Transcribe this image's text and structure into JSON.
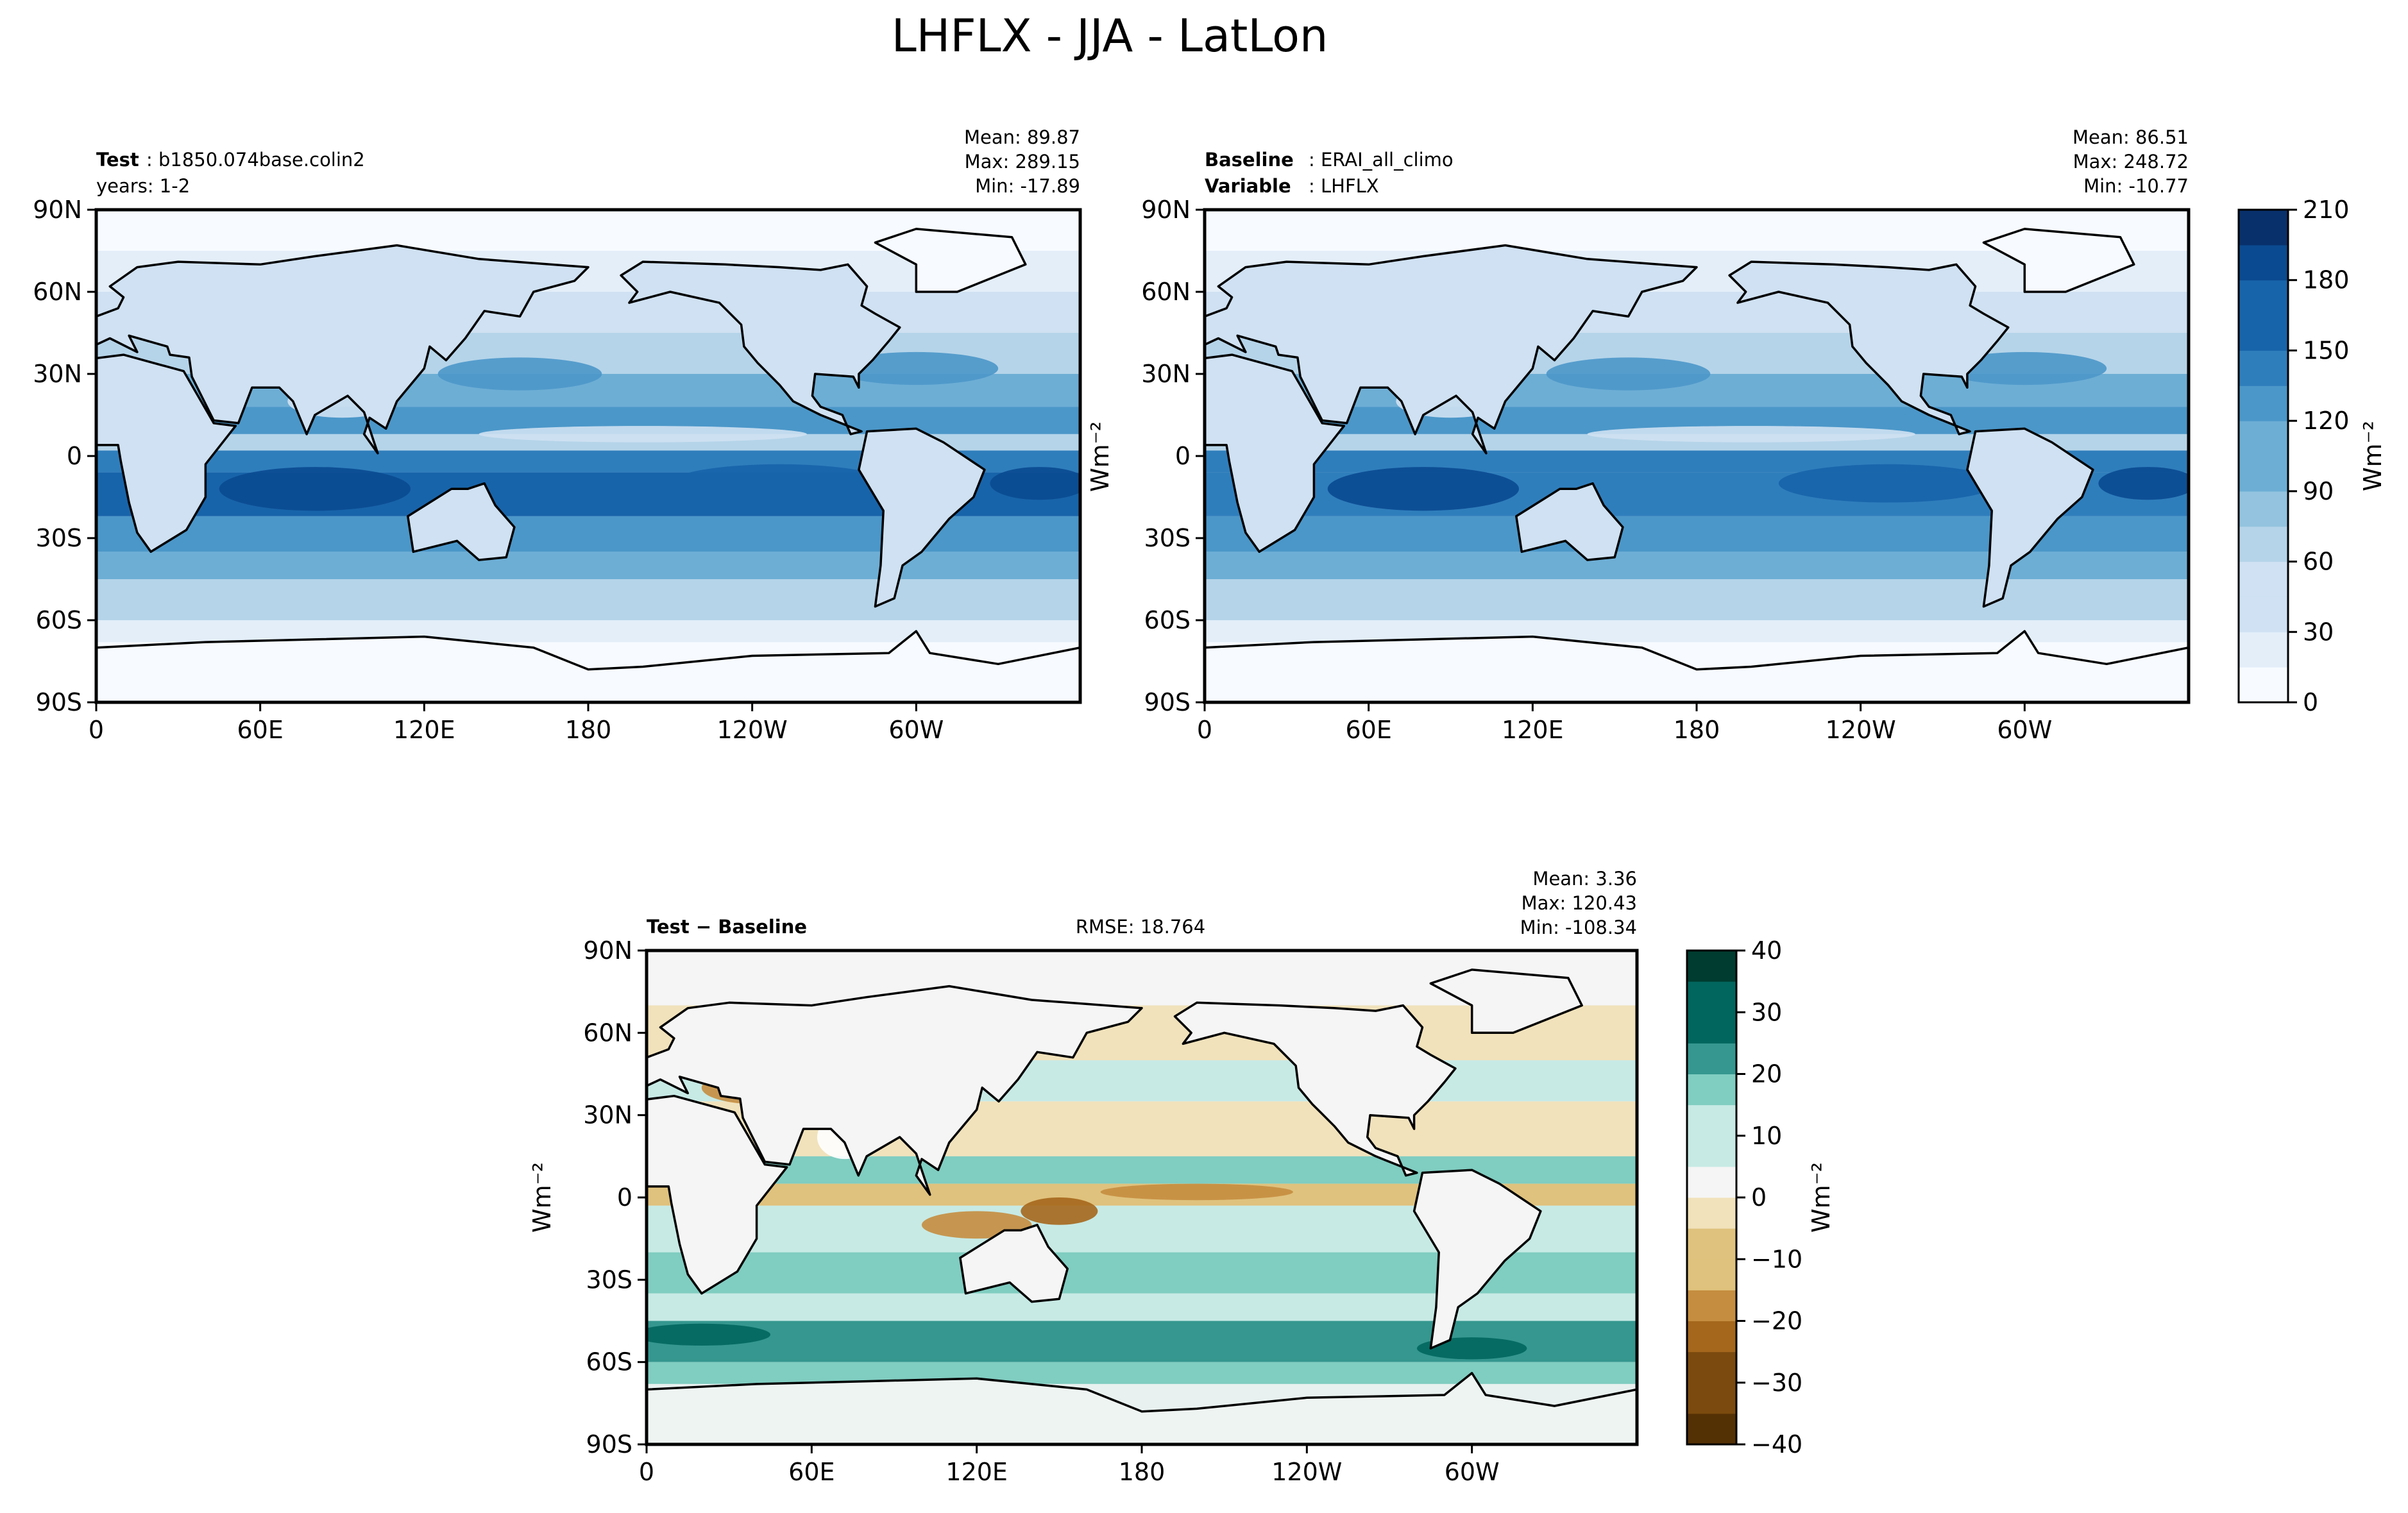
{
  "page_title": "LHFLX - JJA - LatLon",
  "colors": {
    "blues": [
      "#f7fbff",
      "#e3eef9",
      "#cfe1f2",
      "#b5d4e9",
      "#93c3df",
      "#6daed5",
      "#4b97c9",
      "#2f7ebc",
      "#1864aa",
      "#0a4a90",
      "#08306b"
    ],
    "diverging": [
      "#543005",
      "#7a4a0e",
      "#a5671c",
      "#c58d3f",
      "#dfc27d",
      "#f1e2bb",
      "#f5f5f5",
      "#c7eae5",
      "#80cdc1",
      "#35978f",
      "#01665e",
      "#003c30"
    ],
    "coast": "#000000",
    "axes": "#000000"
  },
  "panels": {
    "test": {
      "title_bold": "Test",
      "title_rest": ": b1850.074base.colin2",
      "subtitle": "years: 1-2",
      "stats": {
        "mean": "Mean: 89.87",
        "max": "Max: 289.15",
        "min": "Min: -17.89"
      },
      "ylabel": ""
    },
    "baseline": {
      "title_bold": "Baseline",
      "title_rest": ": ERAI_all_climo",
      "subtitle_bold": "Variable",
      "subtitle_rest": ": LHFLX",
      "stats": {
        "mean": "Mean: 86.51",
        "max": "Max: 248.72",
        "min": "Min: -10.77"
      },
      "ylabel": "Wm⁻²"
    },
    "diff": {
      "title_bold": "Test − Baseline",
      "rmse": "RMSE: 18.764",
      "stats": {
        "mean": "Mean:  3.36",
        "max": "Max: 120.43",
        "min": "Min: -108.34"
      },
      "ylabel": "Wm⁻²"
    }
  },
  "colorbars": {
    "top": {
      "label": "Wm⁻²",
      "ticks": [
        "210",
        "180",
        "150",
        "120",
        "90",
        "60",
        "30",
        "0"
      ]
    },
    "bottom": {
      "label": "Wm⁻²",
      "ticks": [
        "40",
        "30",
        "20",
        "10",
        "0",
        "−10",
        "−20",
        "−30",
        "−40"
      ]
    }
  },
  "chart_data": [
    {
      "type": "heatmap",
      "title": "Test: b1850.074base.colin2",
      "variable": "LHFLX",
      "season": "JJA",
      "units": "Wm⁻²",
      "x_ticks": [
        "0",
        "60E",
        "120E",
        "180",
        "120W",
        "60W"
      ],
      "y_ticks": [
        "90N",
        "60N",
        "30N",
        "0",
        "30S",
        "60S",
        "90S"
      ],
      "xlim": [
        0,
        360
      ],
      "ylim": [
        -90,
        90
      ],
      "colorbar": {
        "min": 0,
        "max": 210,
        "step": 15
      },
      "stats": {
        "mean": 89.87,
        "max": 289.15,
        "min": -17.89
      }
    },
    {
      "type": "heatmap",
      "title": "Baseline: ERAI_all_climo",
      "variable": "LHFLX",
      "season": "JJA",
      "units": "Wm⁻²",
      "x_ticks": [
        "0",
        "60E",
        "120E",
        "180",
        "120W",
        "60W"
      ],
      "y_ticks": [
        "90N",
        "60N",
        "30N",
        "0",
        "30S",
        "60S",
        "90S"
      ],
      "xlim": [
        0,
        360
      ],
      "ylim": [
        -90,
        90
      ],
      "colorbar": {
        "min": 0,
        "max": 210,
        "step": 15
      },
      "stats": {
        "mean": 86.51,
        "max": 248.72,
        "min": -10.77
      }
    },
    {
      "type": "heatmap",
      "title": "Test − Baseline",
      "variable": "LHFLX",
      "season": "JJA",
      "units": "Wm⁻²",
      "x_ticks": [
        "0",
        "60E",
        "120E",
        "180",
        "120W",
        "60W"
      ],
      "y_ticks": [
        "90N",
        "60N",
        "30N",
        "0",
        "30S",
        "60S",
        "90S"
      ],
      "xlim": [
        0,
        360
      ],
      "ylim": [
        -90,
        90
      ],
      "colorbar": {
        "min": -40,
        "max": 40,
        "step": 5
      },
      "rmse": 18.764,
      "stats": {
        "mean": 3.36,
        "max": 120.43,
        "min": -108.34
      }
    }
  ]
}
